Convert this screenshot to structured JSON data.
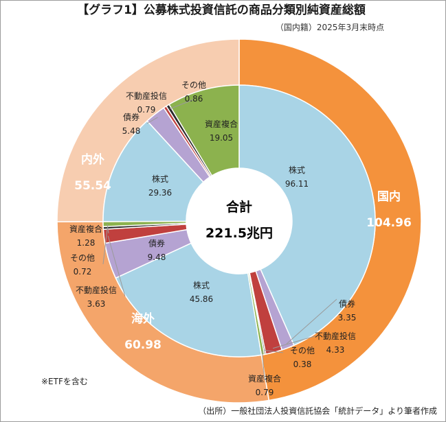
{
  "chart_data": {
    "type": "pie",
    "title": "【グラフ1】公募株式投資信託の商品分類別純資産総額",
    "subtitle": "（国内籍）2025年3月末時点",
    "center_label": "合計",
    "center_value": "221.5兆円",
    "outer_ring": [
      {
        "label": "国内",
        "value": 104.96,
        "value_text": "104.96",
        "color": "#F4923C"
      },
      {
        "label": "海外",
        "value": 60.98,
        "value_text": "60.98",
        "color": "#F4A56A"
      },
      {
        "label": "内外",
        "value": 55.54,
        "value_text": "55.54",
        "color": "#F7CDB0"
      }
    ],
    "inner_ring": [
      {
        "group": "国内",
        "label": "株式",
        "value": 96.11,
        "value_text": "96.11",
        "color": "#A9D4E6"
      },
      {
        "group": "国内",
        "label": "債券",
        "value": 3.35,
        "value_text": "3.35",
        "color": "#B5A3D2"
      },
      {
        "group": "国内",
        "label": "不動産投信",
        "value": 4.33,
        "value_text": "4.33",
        "color": "#C0403E"
      },
      {
        "group": "国内",
        "label": "その他",
        "value": 0.38,
        "value_text": "0.38",
        "color": "#2b2b2b"
      },
      {
        "group": "国内",
        "label": "資産複合",
        "value": 0.79,
        "value_text": "0.79",
        "color": "#8CB24E"
      },
      {
        "group": "海外",
        "label": "株式",
        "value": 45.86,
        "value_text": "45.86",
        "color": "#A9D4E6"
      },
      {
        "group": "海外",
        "label": "債券",
        "value": 9.48,
        "value_text": "9.48",
        "color": "#B5A3D2"
      },
      {
        "group": "海外",
        "label": "不動産投信",
        "value": 3.63,
        "value_text": "3.63",
        "color": "#C0403E"
      },
      {
        "group": "海外",
        "label": "その他",
        "value": 0.72,
        "value_text": "0.72",
        "color": "#2b2b2b"
      },
      {
        "group": "海外",
        "label": "資産複合",
        "value": 1.28,
        "value_text": "1.28",
        "color": "#8CB24E"
      },
      {
        "group": "内外",
        "label": "株式",
        "value": 29.36,
        "value_text": "29.36",
        "color": "#A9D4E6"
      },
      {
        "group": "内外",
        "label": "債券",
        "value": 5.48,
        "value_text": "5.48",
        "color": "#B5A3D2"
      },
      {
        "group": "内外",
        "label": "不動産投信",
        "value": 0.79,
        "value_text": "0.79",
        "color": "#C0403E"
      },
      {
        "group": "内外",
        "label": "その他",
        "value": 0.86,
        "value_text": "0.86",
        "color": "#2b2b2b"
      },
      {
        "group": "内外",
        "label": "資産複合",
        "value": 19.05,
        "value_text": "19.05",
        "color": "#8CB24E"
      }
    ]
  },
  "note": "※ETFを含む",
  "source": "（出所）一般社団法人投資信託協会「統計データ」より筆者作成"
}
